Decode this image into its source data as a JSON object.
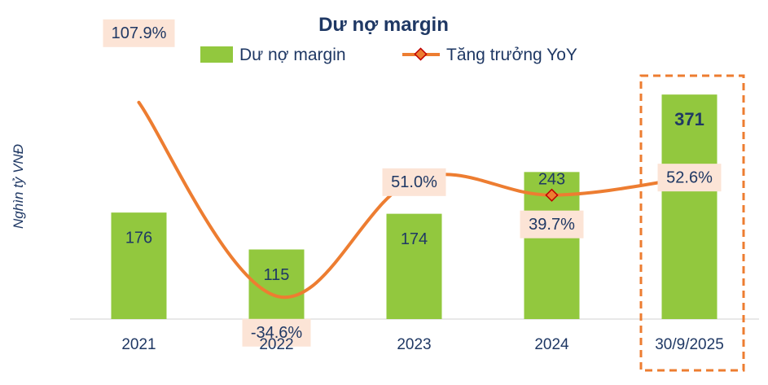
{
  "chart_data": {
    "type": "bar",
    "title": "Dư nợ margin",
    "ylabel": "Nghìn tỷ VNĐ",
    "xlabel": "",
    "categories": [
      "2021",
      "2022",
      "2023",
      "2024",
      "30/9/2025"
    ],
    "series": [
      {
        "name": "Dư nợ margin",
        "type": "bar",
        "values": [
          176,
          115,
          174,
          243,
          371
        ],
        "labels": [
          "176",
          "115",
          "174",
          "243",
          "371"
        ],
        "color": "#92c83e"
      },
      {
        "name": "Tăng trưởng YoY",
        "type": "line",
        "values": [
          107.9,
          -34.6,
          51.0,
          39.7,
          52.6
        ],
        "labels": [
          "107.9%",
          "-34.6%",
          "51.0%",
          "39.7%",
          "52.6%"
        ],
        "color": "#ed7d31"
      }
    ],
    "highlight_category": "30/9/2025",
    "highlight_color": "#ed7d31",
    "label_box_color": "#fce4d6",
    "text_color": "#1f3864"
  }
}
